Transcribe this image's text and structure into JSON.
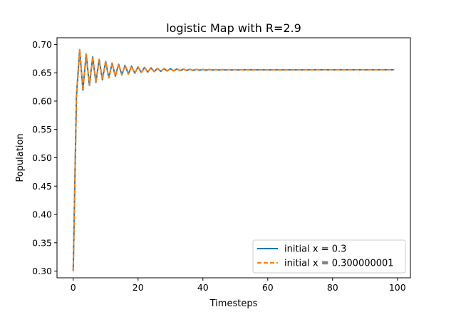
{
  "chart_data": {
    "type": "line",
    "title": "logistic Map with R=2.9",
    "xlabel": "Timesteps",
    "ylabel": "Population",
    "xlim": [
      -5,
      104
    ],
    "ylim": [
      0.2882,
      0.7118
    ],
    "xticks": [
      0,
      20,
      40,
      60,
      80,
      100
    ],
    "yticks": [
      0.3,
      0.35,
      0.4,
      0.45,
      0.5,
      0.55,
      0.6,
      0.65,
      0.7
    ],
    "xtick_labels": [
      "0",
      "20",
      "40",
      "60",
      "80",
      "100"
    ],
    "ytick_labels": [
      "0.30",
      "0.35",
      "0.40",
      "0.45",
      "0.50",
      "0.55",
      "0.60",
      "0.65",
      "0.70"
    ],
    "grid": false,
    "legend_position": "lower-right",
    "R": 2.9,
    "steps": 100,
    "series": [
      {
        "name": "initial x = 0.3",
        "x0": 0.3,
        "color": "#1f77b4",
        "style": "solid"
      },
      {
        "name": "initial x = 0.300000001",
        "x0": 0.300000001,
        "color": "#ff7f0e",
        "style": "dashed"
      }
    ]
  }
}
